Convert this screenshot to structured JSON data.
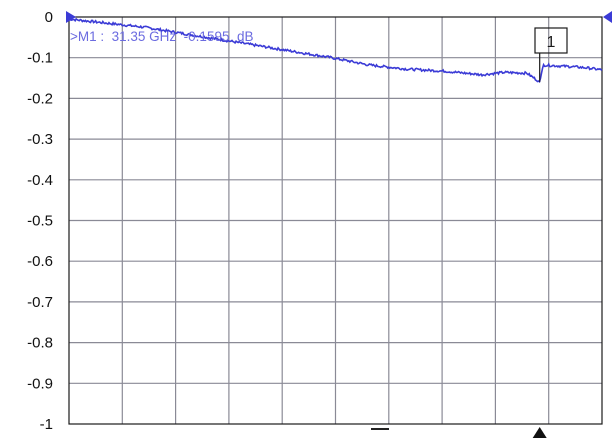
{
  "chart_data": {
    "type": "line",
    "title": "",
    "xlabel": "",
    "ylabel": "",
    "ylim": [
      -1,
      0
    ],
    "yticks": [
      "0",
      "-0.1",
      "-0.2",
      "-0.3",
      "-0.4",
      "-0.5",
      "-0.6",
      "-0.7",
      "-0.8",
      "-0.9",
      "-1"
    ],
    "x_divisions": 10,
    "y_divisions": 10,
    "grid": true,
    "x_unit": "GHz",
    "y_unit": "dB",
    "series": [
      {
        "color": "#3b3bd6",
        "x": [
          0,
          2.5,
          5,
          7.5,
          10,
          12.5,
          15,
          17.5,
          20,
          22.5,
          25,
          27.5,
          29,
          30.5,
          31.35,
          31.6,
          32.5,
          33.5,
          34.5,
          35.5
        ],
        "y": [
          -0.005,
          -0.015,
          -0.025,
          -0.04,
          -0.055,
          -0.07,
          -0.085,
          -0.1,
          -0.118,
          -0.128,
          -0.133,
          -0.142,
          -0.136,
          -0.138,
          -0.1595,
          -0.118,
          -0.12,
          -0.122,
          -0.125,
          -0.13
        ]
      }
    ],
    "x_range": [
      0,
      35.5
    ],
    "marker": {
      "box_label": "1",
      "readout": ">M1 :  31.35 GHz  -0.1595  dB",
      "x": 31.35,
      "y": -0.1595
    },
    "reference_level": 0
  },
  "colors": {
    "trace": "#3b3bd6",
    "grid": "#8a8a96",
    "frame": "#1a1a1a",
    "marker_text": "#6b6be0",
    "reference_arrow": "#3b3bd6"
  }
}
